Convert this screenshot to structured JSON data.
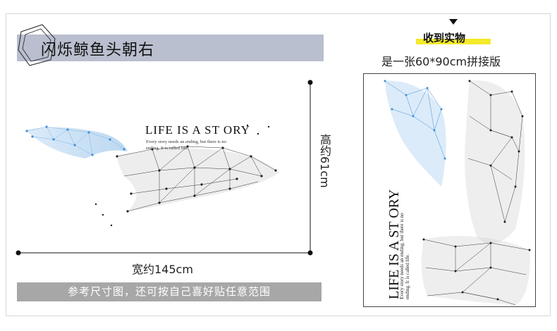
{
  "header": {
    "title": "闪烁鲸鱼头朝右"
  },
  "artwork": {
    "story_title": "LIFE IS A ST ORY",
    "story_line1": "Every story needs an ending, but there is no",
    "story_line2": "ending. It is called life."
  },
  "dimensions": {
    "height_label": "高约61cm",
    "width_label": "宽约145cm"
  },
  "reference_note": "参考尺寸图，还可按自己喜好贴任意范围",
  "received": {
    "label": "收到实物",
    "spec": "是一张60*90cm拼接版",
    "highlight_color": "#f4ea2a"
  },
  "sheet": {
    "story_title": "LIFE IS A ST ORY",
    "story_line1": "Every story needs an ending, but there is no",
    "story_line2": "ending. It is called life."
  },
  "colors": {
    "title_bar": "#b9bfcf",
    "reference_bar": "#a7a7a7",
    "accent_blue": "#3d8fd6"
  }
}
